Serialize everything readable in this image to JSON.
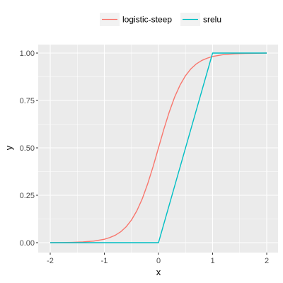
{
  "chart_data": {
    "type": "line",
    "xlabel": "x",
    "ylabel": "y",
    "xlim": [
      -2,
      2
    ],
    "ylim": [
      0,
      1
    ],
    "x_ticks": [
      "-2",
      "-1",
      "0",
      "1",
      "2"
    ],
    "y_ticks": [
      "0.00",
      "0.25",
      "0.50",
      "0.75",
      "1.00"
    ],
    "grid": true,
    "legend_position": "top",
    "series": [
      {
        "name": "logistic-steep",
        "color": "#F8766D",
        "x": [
          -2.0,
          -1.8,
          -1.6,
          -1.4,
          -1.2,
          -1.0,
          -0.9,
          -0.8,
          -0.7,
          -0.6,
          -0.5,
          -0.4,
          -0.3,
          -0.2,
          -0.1,
          0.0,
          0.1,
          0.2,
          0.3,
          0.4,
          0.5,
          0.6,
          0.7,
          0.8,
          0.9,
          1.0,
          1.2,
          1.4,
          1.6,
          1.8,
          2.0
        ],
        "y": [
          0.0003,
          0.0007,
          0.0017,
          0.0037,
          0.0082,
          0.018,
          0.027,
          0.039,
          0.057,
          0.083,
          0.119,
          0.168,
          0.231,
          0.31,
          0.401,
          0.5,
          0.599,
          0.69,
          0.769,
          0.832,
          0.881,
          0.917,
          0.943,
          0.961,
          0.973,
          0.982,
          0.992,
          0.996,
          0.998,
          0.999,
          1.0
        ]
      },
      {
        "name": "srelu",
        "color": "#00BFC4",
        "x": [
          -2.0,
          0.0,
          1.0,
          2.0
        ],
        "y": [
          0.0,
          0.0,
          1.0,
          1.0
        ]
      }
    ]
  }
}
